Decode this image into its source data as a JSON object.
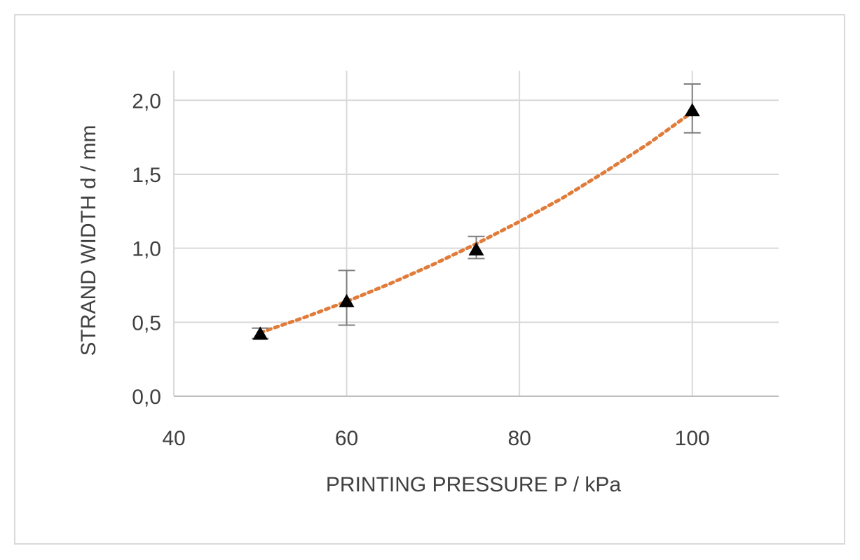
{
  "chart_data": {
    "type": "scatter",
    "xlabel": "PRINTING PRESSURE  P / kPa",
    "ylabel": "STRAND WIDTH  d / mm",
    "xlim": [
      40,
      110
    ],
    "ylim": [
      0,
      2.0
    ],
    "xticks": [
      40,
      60,
      80,
      100
    ],
    "xtick_labels": [
      "40",
      "60",
      "80",
      "100"
    ],
    "yticks": [
      0,
      0.5,
      1.0,
      1.5,
      2.0
    ],
    "ytick_labels": [
      "0,0",
      "0,5",
      "1,0",
      "1,5",
      "2,0"
    ],
    "grid": true,
    "series": [
      {
        "marker": "triangle",
        "color": "#000000",
        "points": [
          {
            "x": 50,
            "y": 0.42,
            "err_low": 0.39,
            "err_high": 0.46
          },
          {
            "x": 60,
            "y": 0.64,
            "err_low": 0.48,
            "err_high": 0.85
          },
          {
            "x": 75,
            "y": 0.99,
            "err_low": 0.93,
            "err_high": 1.08
          },
          {
            "x": 100,
            "y": 1.93,
            "err_low": 1.78,
            "err_high": 2.11
          }
        ]
      }
    ],
    "trendline": {
      "style": "dotted",
      "color": "#e07b39",
      "x": [
        50,
        55,
        60,
        65,
        70,
        75,
        80,
        85,
        90,
        95,
        100
      ],
      "y": [
        0.43,
        0.53,
        0.64,
        0.76,
        0.89,
        1.03,
        1.18,
        1.34,
        1.52,
        1.71,
        1.92
      ]
    }
  }
}
